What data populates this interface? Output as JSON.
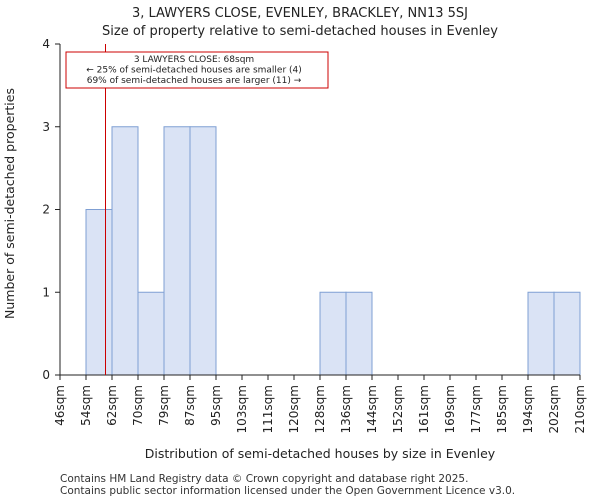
{
  "chart_data": {
    "type": "bar",
    "title": "3, LAWYERS CLOSE, EVENLEY, BRACKLEY, NN13 5SJ",
    "subtitle": "Size of property relative to semi-detached houses in Evenley",
    "xlabel": "Distribution of semi-detached houses by size in Evenley",
    "ylabel": "Number of semi-detached properties",
    "bin_edges": [
      "46sqm",
      "54sqm",
      "62sqm",
      "70sqm",
      "79sqm",
      "87sqm",
      "95sqm",
      "103sqm",
      "111sqm",
      "120sqm",
      "128sqm",
      "136sqm",
      "144sqm",
      "152sqm",
      "161sqm",
      "169sqm",
      "177sqm",
      "185sqm",
      "194sqm",
      "202sqm",
      "210sqm"
    ],
    "values": [
      0,
      2,
      3,
      1,
      3,
      3,
      0,
      0,
      0,
      0,
      1,
      1,
      0,
      0,
      0,
      0,
      0,
      0,
      1,
      1
    ],
    "yticks": [
      "0",
      "1",
      "2",
      "3",
      "4"
    ],
    "ylim": [
      0,
      4
    ],
    "marker": {
      "value_bin_position": 1.75
    },
    "annotation": {
      "lines": [
        "3 LAWYERS CLOSE: 68sqm",
        "← 25% of semi-detached houses are smaller (4)",
        "69% of semi-detached houses are larger (11) →"
      ]
    },
    "colors": {
      "bar_fill": "#dae3f5",
      "bar_stroke": "#7f9fd3",
      "marker": "#cc0000"
    }
  },
  "footer": {
    "line1": "Contains HM Land Registry data © Crown copyright and database right 2025.",
    "line2": "Contains public sector information licensed under the Open Government Licence v3.0."
  }
}
